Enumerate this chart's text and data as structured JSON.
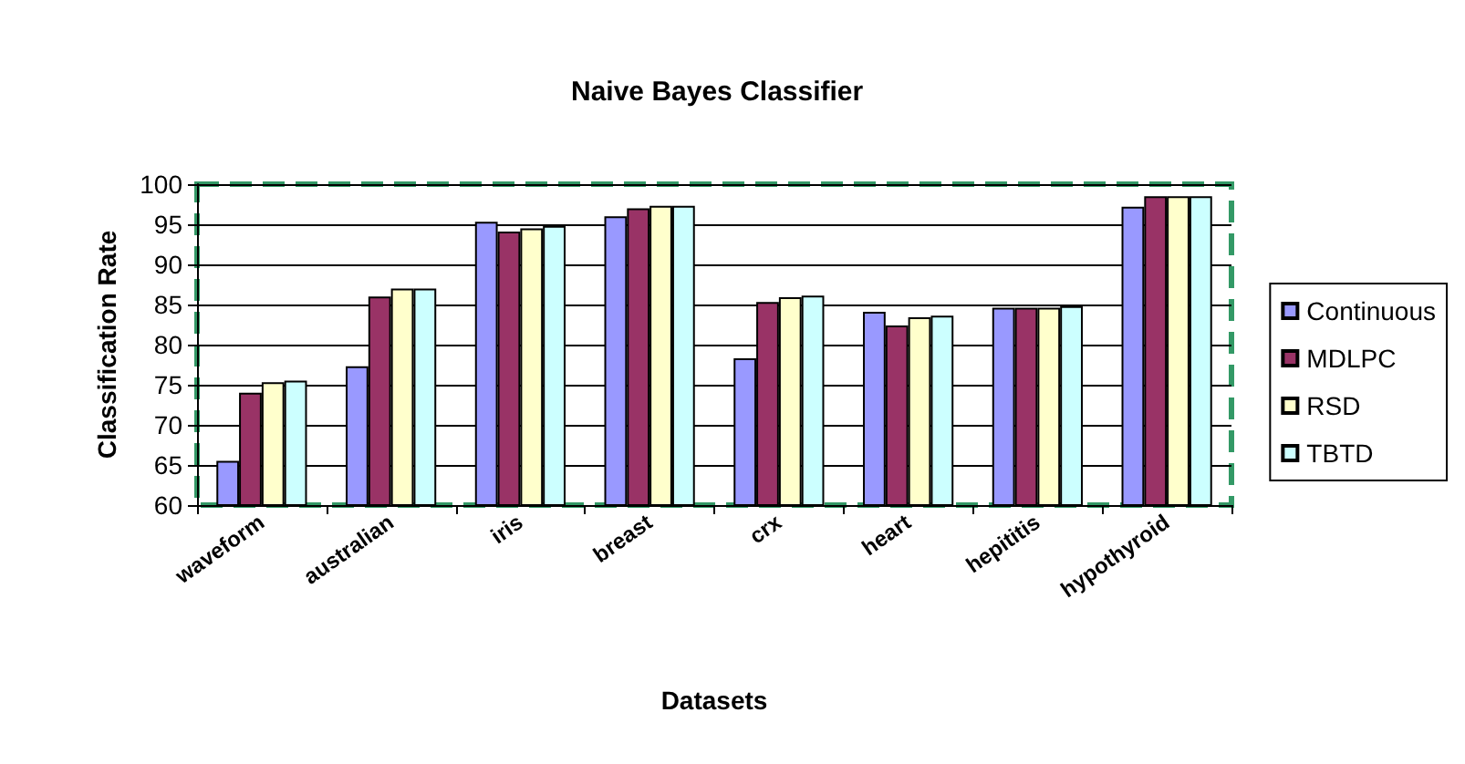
{
  "chart_data": {
    "type": "bar",
    "title": "Naive Bayes Classifier",
    "xlabel": "Datasets",
    "ylabel": "Classification Rate",
    "categories": [
      "waveform",
      "australian",
      "iris",
      "breast",
      "crx",
      "heart",
      "hepititis",
      "hypothyroid"
    ],
    "series": [
      {
        "name": "Continuous",
        "color": "#9999ff",
        "values": [
          65.5,
          77.3,
          95.3,
          96,
          78.3,
          84.1,
          84.6,
          97.2
        ]
      },
      {
        "name": "MDLPC",
        "color": "#993366",
        "values": [
          74,
          86,
          94.1,
          97,
          85.3,
          82.4,
          84.6,
          98.5
        ]
      },
      {
        "name": "RSD",
        "color": "#ffffcc",
        "values": [
          75.3,
          87,
          94.5,
          97.3,
          85.9,
          83.4,
          84.6,
          98.5
        ]
      },
      {
        "name": "TBTD",
        "color": "#ccffff",
        "values": [
          75.5,
          87,
          94.8,
          97.3,
          86.1,
          83.6,
          84.8,
          98.5
        ]
      }
    ],
    "ylim": [
      60,
      100
    ],
    "yticks": [
      60,
      65,
      70,
      75,
      80,
      85,
      90,
      95,
      100
    ],
    "grid": "y",
    "legend": "right"
  }
}
